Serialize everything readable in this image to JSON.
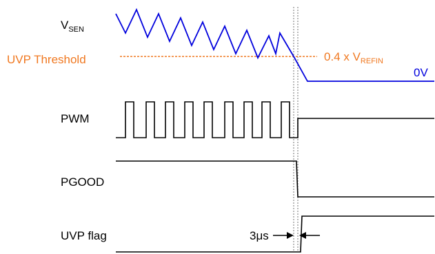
{
  "signals": {
    "vsen": {
      "main": "V",
      "sub": "SEN"
    },
    "pwm": "PWM",
    "pgood": "PGOOD",
    "uvp_flag": "UVP flag"
  },
  "threshold": {
    "label": "UVP Threshold",
    "value_prefix": "0.4 x V",
    "value_sub": "REFIN"
  },
  "zero_label": "0V",
  "delay_label": "3μs",
  "colors": {
    "vsen": "#0000dd",
    "threshold": "#f07820",
    "digital": "#000000",
    "marker": "#a0a0a0"
  }
}
